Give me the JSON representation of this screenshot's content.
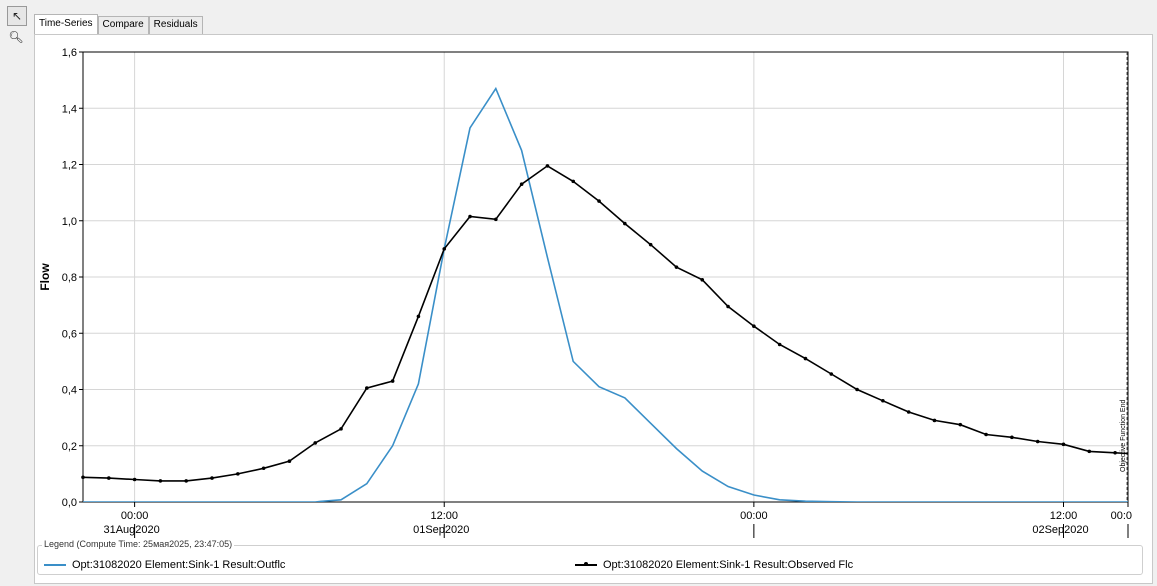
{
  "toolbar": {
    "select_tool": "select-pointer",
    "zoom_tool": "zoom-magnifier"
  },
  "tabs": [
    {
      "label": "Time-Series",
      "active": true
    },
    {
      "label": "Compare",
      "active": false
    },
    {
      "label": "Residuals",
      "active": false
    }
  ],
  "legend": {
    "title": "Legend (Compute Time: 25мая2025, 23:47:05)",
    "items": [
      {
        "label": "Opt:31082020 Element:Sink-1 Result:Outflc",
        "color": "#3a8fc8"
      },
      {
        "label": "Opt:31082020 Element:Sink-1 Result:Observed Flc",
        "color": "#000000"
      }
    ]
  },
  "chart_data": {
    "type": "line",
    "ylabel": "Flow",
    "ylim": [
      0,
      1.6
    ],
    "yticks": [
      "0,0",
      "0,2",
      "0,4",
      "0,6",
      "0,8",
      "1,0",
      "1,2",
      "1,4",
      "1,6"
    ],
    "xlim_hours": [
      -2,
      38.5
    ],
    "xticks": [
      {
        "hour": 0,
        "time": "00:00",
        "date": "31Aug2020"
      },
      {
        "hour": 12,
        "time": "12:00",
        "date": "01Sep2020"
      },
      {
        "hour": 24,
        "time": "00:00",
        "date": ""
      },
      {
        "hour": 36,
        "time": "12:00",
        "date": "02Sep2020"
      },
      {
        "hour": 48,
        "time": "00:0",
        "date": ""
      }
    ],
    "annotation": "Objective Function End",
    "series": [
      {
        "name": "Outflow",
        "color": "#3a8fc8",
        "markers": false,
        "x": [
          -2,
          7,
          7.2,
          8,
          9,
          10,
          11,
          12,
          13,
          14,
          15,
          16,
          17,
          18,
          19,
          20,
          21,
          22,
          23,
          24,
          25,
          26,
          27,
          28,
          29,
          30,
          31,
          32,
          33,
          34,
          35,
          36,
          37,
          38,
          39,
          40,
          41,
          42,
          43,
          44,
          45,
          46,
          47,
          48
        ],
        "y": [
          0,
          0,
          0.002,
          0.008,
          0.065,
          0.2,
          0.42,
          0.9,
          1.33,
          1.47,
          1.25,
          0.87,
          0.5,
          0.41,
          0.37,
          0.28,
          0.19,
          0.11,
          0.055,
          0.025,
          0.008,
          0.003,
          0.001,
          0,
          0,
          0,
          0,
          0,
          0,
          0,
          0,
          0,
          0,
          0,
          0,
          0,
          0,
          0,
          0,
          0,
          0,
          0,
          0,
          0
        ]
      },
      {
        "name": "Observed Flow",
        "color": "#000000",
        "markers": true,
        "x": [
          -3,
          -2,
          -1,
          0,
          1,
          2,
          3,
          4,
          5,
          6,
          7,
          8,
          9,
          10,
          11,
          12,
          13,
          14,
          15,
          16,
          17,
          18,
          19,
          20,
          21,
          22,
          23,
          24,
          25,
          26,
          27,
          28,
          29,
          30,
          31,
          32,
          33,
          34,
          35,
          36,
          37,
          38,
          39,
          40,
          41,
          42,
          43,
          44,
          45,
          46,
          47,
          48
        ],
        "y": [
          0.09,
          0.088,
          0.085,
          0.08,
          0.075,
          0.075,
          0.085,
          0.1,
          0.12,
          0.145,
          0.21,
          0.26,
          0.405,
          0.43,
          0.66,
          0.9,
          1.015,
          1.005,
          1.13,
          1.195,
          1.14,
          1.07,
          0.99,
          0.915,
          0.835,
          0.79,
          0.695,
          0.625,
          0.56,
          0.51,
          0.455,
          0.4,
          0.36,
          0.32,
          0.29,
          0.275,
          0.24,
          0.23,
          0.215,
          0.205,
          0.18,
          0.175,
          0.17,
          0.145,
          0.135,
          0.125,
          0.115,
          0.115,
          0.1,
          0.09,
          0.09,
          0.09
        ]
      }
    ]
  }
}
